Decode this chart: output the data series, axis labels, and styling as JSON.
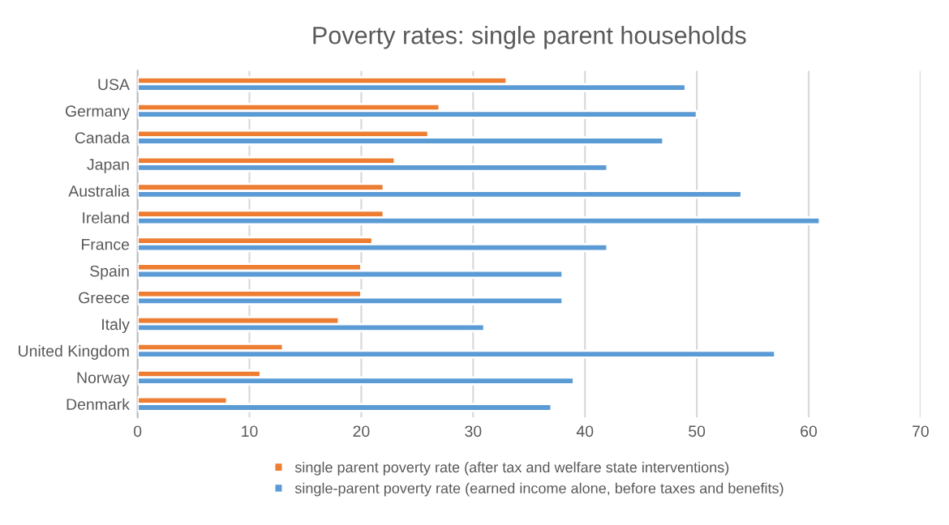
{
  "chart_data": {
    "type": "bar",
    "orientation": "horizontal",
    "title": "Poverty rates: single parent households",
    "categories": [
      "USA",
      "Germany",
      "Canada",
      "Japan",
      "Australia",
      "Ireland",
      "France",
      "Spain",
      "Greece",
      "Italy",
      "United Kingdom",
      "Norway",
      "Denmark"
    ],
    "series": [
      {
        "name": "single parent poverty rate (after tax and welfare state interventions)",
        "color": "#ed7d31",
        "values": [
          33,
          27,
          26,
          23,
          22,
          22,
          21,
          20,
          20,
          18,
          13,
          11,
          8
        ]
      },
      {
        "name": "single-parent poverty rate (earned income alone, before taxes and benefits)",
        "color": "#5b9bd5",
        "values": [
          49,
          50,
          47,
          42,
          54,
          61,
          42,
          38,
          38,
          31,
          57,
          39,
          37
        ]
      }
    ],
    "xlim": [
      0,
      70
    ],
    "xticks": [
      0,
      10,
      20,
      30,
      40,
      50,
      60,
      70
    ],
    "grid": "x",
    "legend": "bottom"
  }
}
